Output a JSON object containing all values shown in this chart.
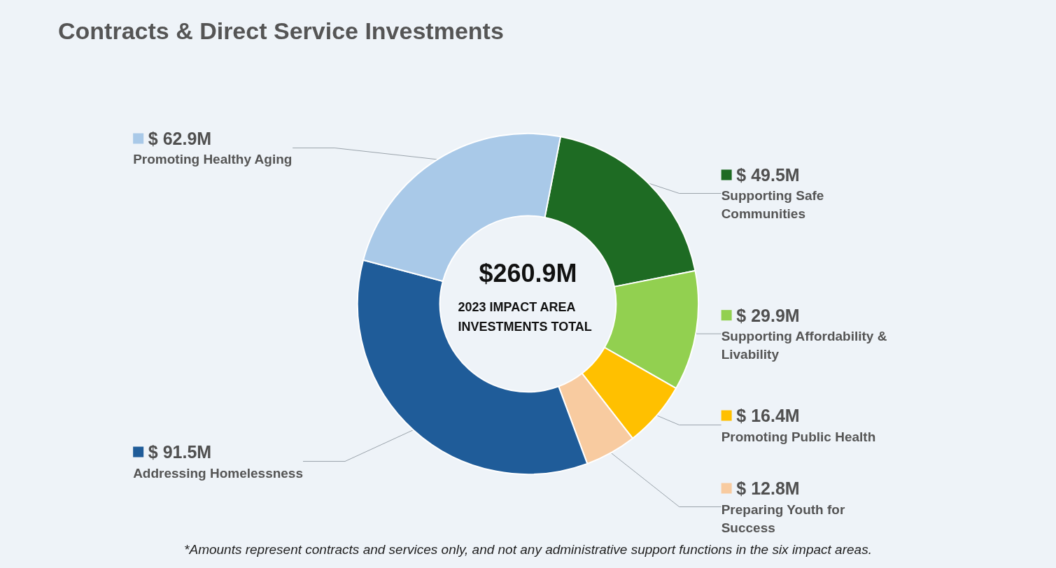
{
  "chart_data": {
    "type": "donut",
    "title": "Contracts & Direct Service Investments",
    "categories": [
      "Supporting Safe Communities",
      "Supporting Affordability & Livability",
      "Promoting Public Health",
      "Preparing Youth for Success",
      "Addressing Homelessness",
      "Promoting Healthy Aging"
    ],
    "values": [
      49.5,
      29.9,
      16.4,
      12.8,
      91.5,
      62.9
    ],
    "value_labels": [
      "$ 49.5M",
      "$ 29.9M",
      "$ 16.4M",
      "$ 12.8M",
      "$ 91.5M",
      "$ 62.9M"
    ],
    "colors": [
      "#1e6b23",
      "#92d050",
      "#ffc000",
      "#f8cba0",
      "#1f5c99",
      "#a9c9e8"
    ],
    "annotations": [
      "$260.9M",
      "2023 IMPACT AREA INVESTMENTS TOTAL",
      "*Amounts represent contracts and services only, and not any administrative support functions in the six impact areas."
    ],
    "legend": "bottom left"
  }
}
